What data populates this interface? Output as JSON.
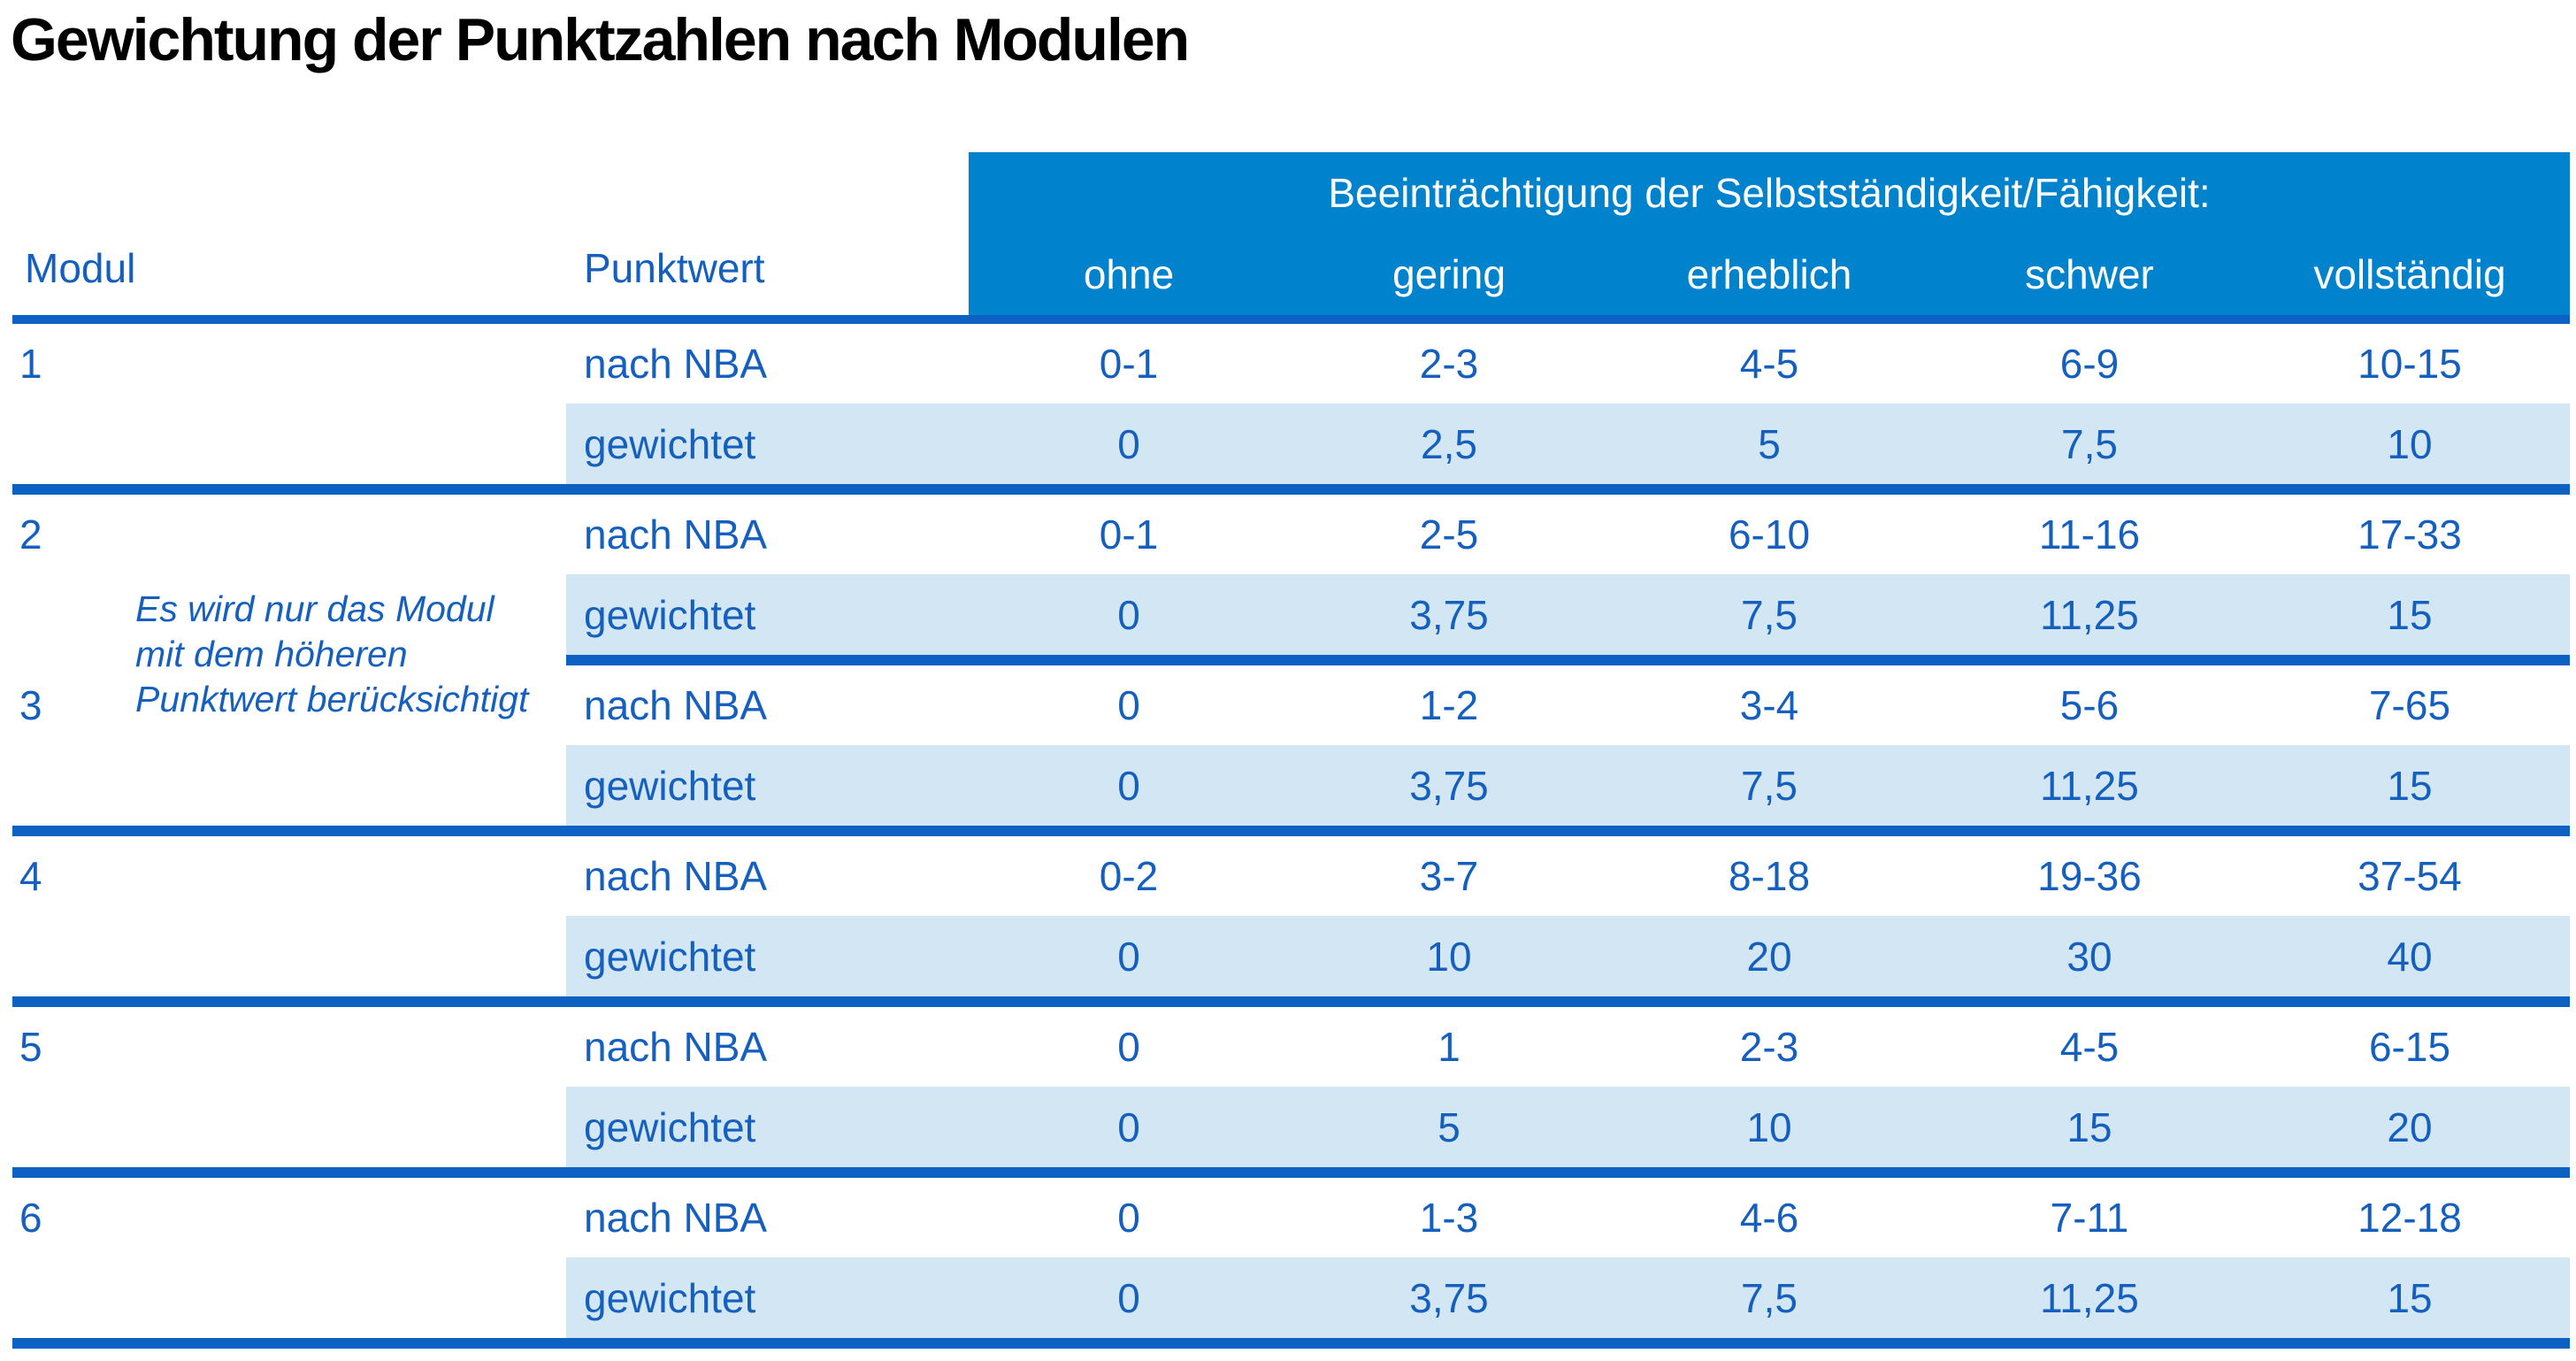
{
  "title": "Gewichtung der Punktzahlen nach Modulen",
  "table": {
    "group_header": "Beeinträchtigung der Selbstständigkeit/Fähigkeit:",
    "col_modul": "Modul",
    "col_punktwert": "Punktwert",
    "severity": [
      "ohne",
      "gering",
      "erheblich",
      "schwer",
      "vollständig"
    ],
    "row_label_nba": "nach NBA",
    "row_label_weighted": "gewichtet",
    "note_lines": [
      "Es wird nur das Modul",
      "mit dem höheren",
      "Punktwert berücksichtigt"
    ],
    "modules": [
      {
        "id": "1",
        "nba": [
          "0-1",
          "2-3",
          "4-5",
          "6-9",
          "10-15"
        ],
        "weighted": [
          "0",
          "2,5",
          "5",
          "7,5",
          "10"
        ]
      },
      {
        "id": "2",
        "nba": [
          "0-1",
          "2-5",
          "6-10",
          "11-16",
          "17-33"
        ],
        "weighted": [
          "0",
          "3,75",
          "7,5",
          "11,25",
          "15"
        ]
      },
      {
        "id": "3",
        "nba": [
          "0",
          "1-2",
          "3-4",
          "5-6",
          "7-65"
        ],
        "weighted": [
          "0",
          "3,75",
          "7,5",
          "11,25",
          "15"
        ]
      },
      {
        "id": "4",
        "nba": [
          "0-2",
          "3-7",
          "8-18",
          "19-36",
          "37-54"
        ],
        "weighted": [
          "0",
          "10",
          "20",
          "30",
          "40"
        ]
      },
      {
        "id": "5",
        "nba": [
          "0",
          "1",
          "2-3",
          "4-5",
          "6-15"
        ],
        "weighted": [
          "0",
          "5",
          "10",
          "15",
          "20"
        ]
      },
      {
        "id": "6",
        "nba": [
          "0",
          "1-3",
          "4-6",
          "7-11",
          "12-18"
        ],
        "weighted": [
          "0",
          "3,75",
          "7,5",
          "11,25",
          "15"
        ]
      }
    ]
  },
  "colors": {
    "title_text": "#000000",
    "header_bg": "#0082cc",
    "header_text": "#ffffff",
    "text_blue": "#1560be",
    "divider": "#0c61c3",
    "row_shade": "#d3e6f4"
  }
}
